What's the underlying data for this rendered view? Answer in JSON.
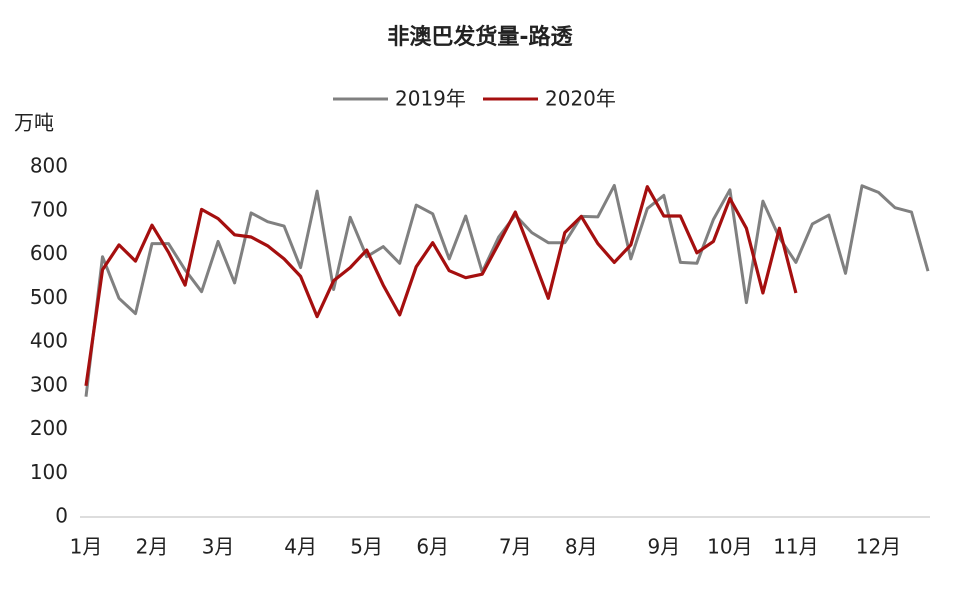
{
  "chart_data": {
    "type": "line",
    "title": "非澳巴发货量-路透",
    "y_label": "万吨",
    "categories": [
      "1月",
      null,
      null,
      null,
      "2月",
      null,
      null,
      null,
      "3月",
      null,
      null,
      null,
      null,
      "4月",
      null,
      null,
      null,
      "5月",
      null,
      null,
      null,
      "6月",
      null,
      null,
      null,
      null,
      "7月",
      null,
      null,
      null,
      "8月",
      null,
      null,
      null,
      null,
      "9月",
      null,
      null,
      null,
      "10月",
      null,
      null,
      null,
      "11月",
      null,
      null,
      null,
      null,
      "12月",
      null,
      null,
      null
    ],
    "series": [
      {
        "name": "2019年",
        "color": "#808080",
        "values": [
          275,
          595,
          500,
          465,
          625,
          625,
          565,
          515,
          630,
          535,
          695,
          675,
          665,
          570,
          745,
          520,
          685,
          595,
          618,
          580,
          713,
          693,
          590,
          688,
          560,
          640,
          690,
          650,
          627,
          627,
          687,
          686,
          758,
          590,
          705,
          735,
          582,
          580,
          680,
          748,
          490,
          722,
          638,
          582,
          670,
          690,
          557,
          757,
          742,
          707,
          697,
          562
        ]
      },
      {
        "name": "2020年",
        "color": "#a50f0f",
        "values": [
          300,
          565,
          622,
          585,
          667,
          605,
          530,
          703,
          682,
          645,
          640,
          620,
          590,
          550,
          458,
          540,
          570,
          610,
          530,
          462,
          572,
          627,
          563,
          547,
          555,
          625,
          697,
          600,
          500,
          650,
          687,
          625,
          582,
          622,
          755,
          688,
          688,
          604,
          630,
          728,
          660,
          512,
          660,
          512,
          null,
          null,
          null,
          null,
          null,
          null,
          null,
          null
        ]
      }
    ],
    "ylim": [
      0,
      800
    ],
    "yticks": [
      0,
      100,
      200,
      300,
      400,
      500,
      600,
      700,
      800
    ],
    "grid": false,
    "legend": "top"
  }
}
